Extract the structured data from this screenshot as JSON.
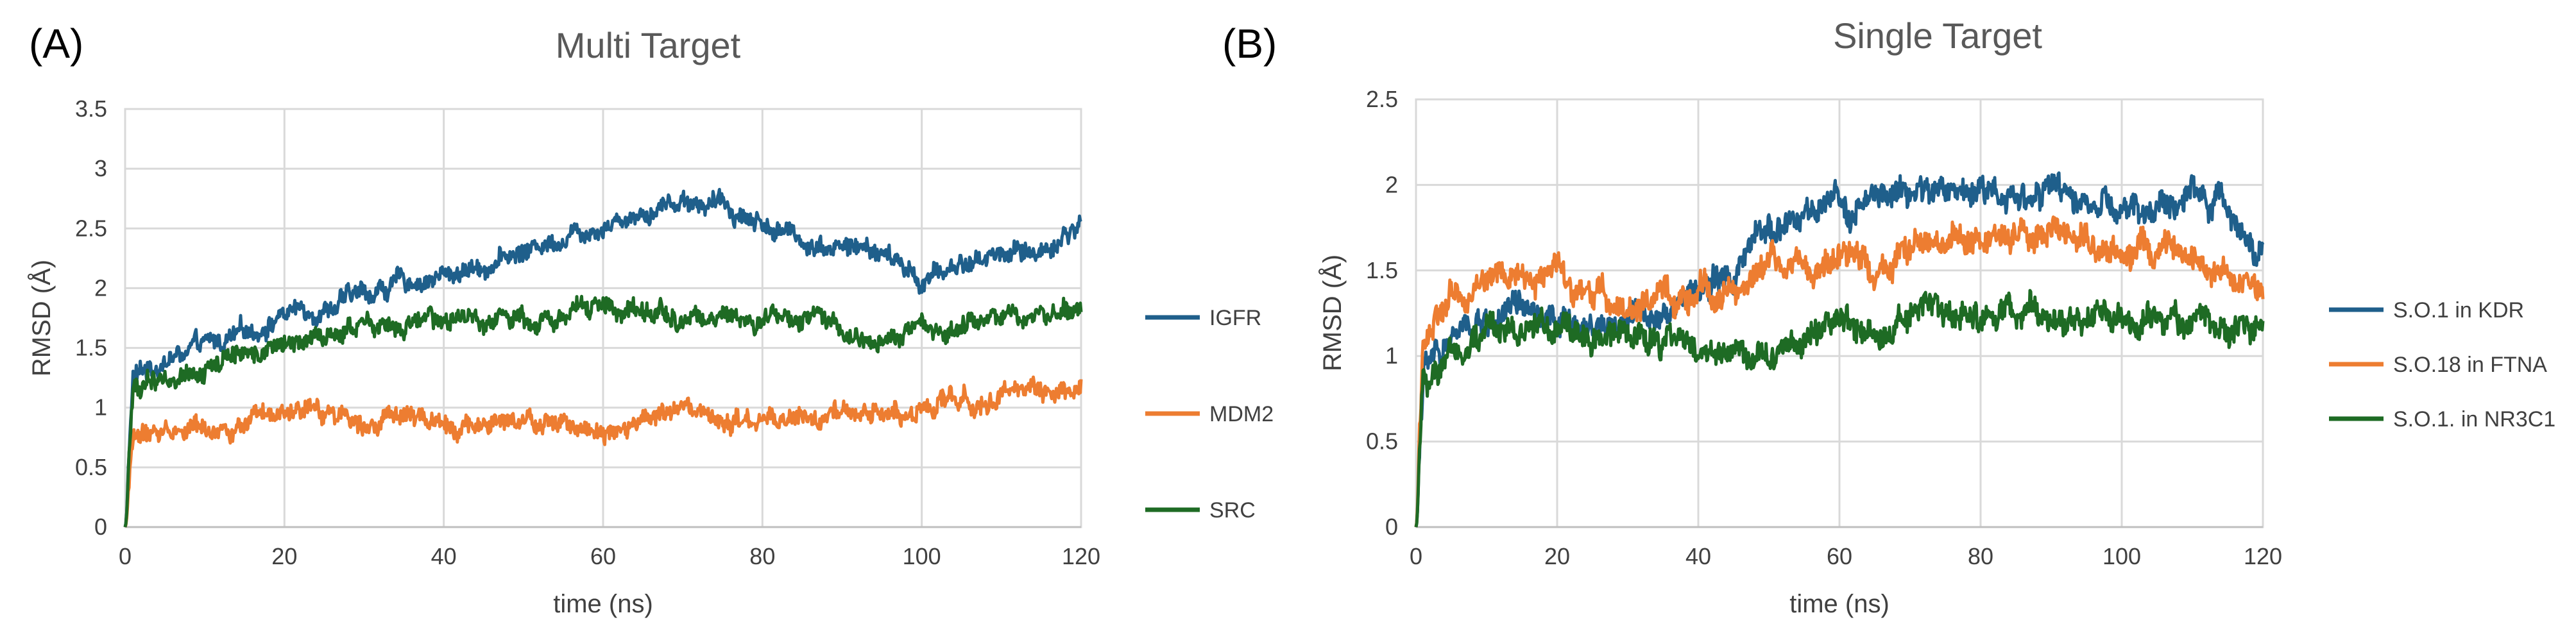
{
  "chart_data": [
    {
      "panel": "(A)",
      "type": "line",
      "title": "Multi Target",
      "xlabel": "time (ns)",
      "ylabel": "RMSD (Å)",
      "xlim": [
        0,
        120
      ],
      "ylim": [
        0,
        3.5
      ],
      "xticks": [
        "0",
        "20",
        "40",
        "60",
        "80",
        "100",
        "120"
      ],
      "yticks": [
        "0",
        "0.5",
        "1",
        "1.5",
        "2",
        "2.5",
        "3",
        "3.5"
      ],
      "grid": true,
      "legend_position": "right",
      "series": [
        {
          "name": "IGFR",
          "color": "#1f5f8b",
          "x": [
            0,
            1,
            5,
            10,
            15,
            20,
            25,
            30,
            35,
            40,
            45,
            50,
            55,
            60,
            65,
            70,
            75,
            80,
            85,
            90,
            95,
            100,
            105,
            110,
            115,
            120
          ],
          "values": [
            0.0,
            1.25,
            1.4,
            1.5,
            1.6,
            1.8,
            1.85,
            1.95,
            2.05,
            2.1,
            2.2,
            2.3,
            2.45,
            2.55,
            2.65,
            2.75,
            2.7,
            2.55,
            2.4,
            2.35,
            2.3,
            2.05,
            2.2,
            2.3,
            2.3,
            2.55
          ]
        },
        {
          "name": "MDM2",
          "color": "#ed7d31",
          "x": [
            0,
            1,
            5,
            10,
            15,
            20,
            25,
            30,
            35,
            40,
            45,
            50,
            55,
            60,
            65,
            70,
            75,
            80,
            85,
            90,
            95,
            100,
            105,
            110,
            115,
            120
          ],
          "values": [
            0.0,
            0.75,
            0.8,
            0.85,
            0.85,
            0.9,
            0.95,
            0.95,
            0.9,
            0.9,
            0.85,
            0.85,
            0.85,
            0.85,
            0.9,
            0.95,
            0.85,
            0.85,
            0.9,
            0.9,
            0.95,
            1.0,
            1.05,
            1.1,
            1.15,
            1.2
          ]
        },
        {
          "name": "SRC",
          "color": "#1e6b24",
          "x": [
            0,
            1,
            5,
            10,
            15,
            20,
            25,
            30,
            35,
            40,
            45,
            50,
            55,
            60,
            65,
            70,
            75,
            80,
            85,
            90,
            95,
            100,
            105,
            110,
            115,
            120
          ],
          "values": [
            0.0,
            1.15,
            1.25,
            1.35,
            1.45,
            1.5,
            1.6,
            1.7,
            1.65,
            1.7,
            1.75,
            1.75,
            1.8,
            1.85,
            1.8,
            1.75,
            1.75,
            1.7,
            1.7,
            1.65,
            1.55,
            1.65,
            1.7,
            1.75,
            1.8,
            1.8
          ]
        }
      ]
    },
    {
      "panel": "(B)",
      "type": "line",
      "title": "Single Target",
      "xlabel": "time (ns)",
      "ylabel": "RMSD (Å)",
      "xlim": [
        0,
        120
      ],
      "ylim": [
        0,
        2.5
      ],
      "xticks": [
        "0",
        "20",
        "40",
        "60",
        "80",
        "100",
        "120"
      ],
      "yticks": [
        "0",
        "0.5",
        "1",
        "1.5",
        "2",
        "2.5"
      ],
      "grid": true,
      "legend_position": "right",
      "series": [
        {
          "name": "S.O.1 in KDR",
          "color": "#1f5f8b",
          "x": [
            0,
            1,
            5,
            10,
            15,
            20,
            25,
            30,
            35,
            40,
            45,
            50,
            55,
            60,
            65,
            70,
            75,
            80,
            85,
            90,
            95,
            100,
            105,
            110,
            115,
            120
          ],
          "values": [
            0.0,
            0.9,
            1.1,
            1.2,
            1.25,
            1.15,
            1.2,
            1.2,
            1.3,
            1.4,
            1.45,
            1.75,
            1.8,
            1.85,
            1.9,
            1.95,
            1.95,
            2.0,
            1.95,
            1.95,
            1.9,
            1.8,
            1.85,
            1.95,
            1.85,
            1.65
          ]
        },
        {
          "name": "S.O.18 in FTNA",
          "color": "#ed7d31",
          "x": [
            0,
            1,
            5,
            10,
            15,
            20,
            25,
            30,
            35,
            40,
            45,
            50,
            55,
            60,
            65,
            70,
            75,
            80,
            85,
            90,
            95,
            100,
            105,
            110,
            115,
            120
          ],
          "values": [
            0.0,
            1.1,
            1.3,
            1.45,
            1.45,
            1.5,
            1.35,
            1.3,
            1.3,
            1.35,
            1.4,
            1.55,
            1.5,
            1.55,
            1.55,
            1.6,
            1.65,
            1.7,
            1.65,
            1.7,
            1.7,
            1.6,
            1.6,
            1.5,
            1.45,
            1.4
          ]
        },
        {
          "name": "S.O.1. in NR3C1",
          "color": "#1e6b24",
          "x": [
            0,
            1,
            5,
            10,
            15,
            20,
            25,
            30,
            35,
            40,
            45,
            50,
            55,
            60,
            65,
            70,
            75,
            80,
            85,
            90,
            95,
            100,
            105,
            110,
            115,
            120
          ],
          "values": [
            0.0,
            0.85,
            1.05,
            1.15,
            1.2,
            1.15,
            1.1,
            1.1,
            1.05,
            1.05,
            1.0,
            1.05,
            1.1,
            1.15,
            1.2,
            1.25,
            1.25,
            1.25,
            1.25,
            1.2,
            1.2,
            1.2,
            1.2,
            1.2,
            1.2,
            1.2
          ]
        }
      ]
    }
  ]
}
